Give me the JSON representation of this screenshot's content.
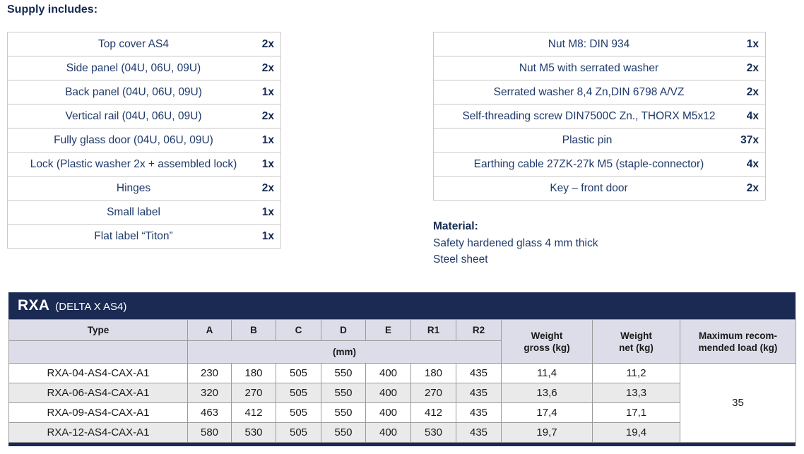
{
  "page": {
    "supply_heading": "Supply includes:"
  },
  "supply_left": {
    "rows": [
      {
        "item": "Top cover AS4",
        "qty": "2x"
      },
      {
        "item": "Side panel (04U, 06U, 09U)",
        "qty": "2x"
      },
      {
        "item": "Back panel (04U, 06U, 09U)",
        "qty": "1x"
      },
      {
        "item": "Vertical rail (04U, 06U, 09U)",
        "qty": "2x"
      },
      {
        "item": "Fully glass door (04U, 06U, 09U)",
        "qty": "1x"
      },
      {
        "item": "Lock (Plastic washer 2x + assembled lock)",
        "qty": "1x"
      },
      {
        "item": "Hinges",
        "qty": "2x"
      },
      {
        "item": "Small label",
        "qty": "1x"
      },
      {
        "item": "Flat label “Titon”",
        "qty": "1x"
      }
    ]
  },
  "supply_right": {
    "rows": [
      {
        "item": "Nut M8: DIN 934",
        "qty": "1x"
      },
      {
        "item": "Nut M5 with serrated washer",
        "qty": "2x"
      },
      {
        "item": "Serrated washer 8,4 Zn,DIN 6798 A/VZ",
        "qty": "2x"
      },
      {
        "item": "Self-threading screw DIN7500C Zn., THORX M5x12",
        "qty": "4x"
      },
      {
        "item": "Plastic pin",
        "qty": "37x"
      },
      {
        "item": "Earthing cable 27ZK-27k M5 (staple-connector)",
        "qty": "4x"
      },
      {
        "item": "Key – front door",
        "qty": "2x"
      }
    ]
  },
  "material": {
    "heading": "Material:",
    "line1": "Safety hardened glass 4 mm thick",
    "line2": "Steel sheet"
  },
  "rxa": {
    "title": "RXA",
    "subtitle": "(DELTA X AS4)",
    "col_type": "Type",
    "dim_columns": [
      "A",
      "B",
      "C",
      "D",
      "E",
      "R1",
      "R2"
    ],
    "mm_label": "(mm)",
    "weight_gross_header": "Weight\ngross (kg)",
    "weight_net_header": "Weight\nnet (kg)",
    "max_load_header": "Maximum recom-\nmended load (kg)",
    "max_load_value": "35",
    "rows": [
      {
        "type": "RXA-04-AS4-CAX-A1",
        "dims": [
          "230",
          "180",
          "505",
          "550",
          "400",
          "180",
          "435"
        ],
        "weight_gross": "11,4",
        "weight_net": "11,2"
      },
      {
        "type": "RXA-06-AS4-CAX-A1",
        "dims": [
          "320",
          "270",
          "505",
          "550",
          "400",
          "270",
          "435"
        ],
        "weight_gross": "13,6",
        "weight_net": "13,3"
      },
      {
        "type": "RXA-09-AS4-CAX-A1",
        "dims": [
          "463",
          "412",
          "505",
          "550",
          "400",
          "412",
          "435"
        ],
        "weight_gross": "17,4",
        "weight_net": "17,1"
      },
      {
        "type": "RXA-12-AS4-CAX-A1",
        "dims": [
          "580",
          "530",
          "505",
          "550",
          "400",
          "530",
          "435"
        ],
        "weight_gross": "19,7",
        "weight_net": "19,4"
      }
    ]
  },
  "colors": {
    "navy_bar": "#1b2a52",
    "header_lavender": "#dcdde8",
    "zebra_gray": "#eaeaea",
    "text_navy": "#1f3a6b",
    "text_navy_dark": "#152a52",
    "grid_gray": "#9b9b9b",
    "light_border": "#c9c9c9"
  }
}
